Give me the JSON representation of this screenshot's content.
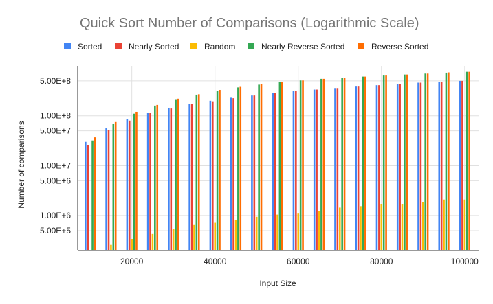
{
  "chart_data": {
    "type": "bar",
    "title": "Quick Sort Number of Comparisons (Logarithmic Scale)",
    "xlabel": "Input Size",
    "ylabel": "Number of comparisons",
    "y_scale": "log",
    "ylim": [
      200000,
      1000000000
    ],
    "xlim": [
      7000,
      103500
    ],
    "grid": "horizontal",
    "legend_position": "top",
    "x_ticks": [
      "20000",
      "40000",
      "60000",
      "80000",
      "100000"
    ],
    "x_tick_values": [
      20000,
      40000,
      60000,
      80000,
      100000
    ],
    "y_ticks": [
      "5.00E+8",
      "1.00E+8",
      "5.00E+7",
      "1.00E+7",
      "5.00E+6",
      "1.00E+6",
      "5.00E+5"
    ],
    "y_tick_values": [
      500000000,
      100000000,
      50000000,
      10000000,
      5000000,
      1000000,
      500000
    ],
    "x": [
      10000,
      15000,
      20000,
      25000,
      30000,
      35000,
      40000,
      45000,
      50000,
      55000,
      60000,
      65000,
      70000,
      75000,
      80000,
      85000,
      90000,
      95000,
      100000
    ],
    "series": [
      {
        "name": "Sorted",
        "color": "#4285f4",
        "values": [
          30000000,
          56000000,
          85000000,
          115000000,
          145000000,
          170000000,
          200000000,
          230000000,
          255000000,
          285000000,
          310000000,
          335000000,
          360000000,
          385000000,
          410000000,
          435000000,
          460000000,
          480000000,
          500000000
        ]
      },
      {
        "name": "Nearly Sorted",
        "color": "#ea4335",
        "values": [
          26000000,
          52000000,
          80000000,
          115000000,
          140000000,
          170000000,
          195000000,
          225000000,
          255000000,
          285000000,
          310000000,
          335000000,
          360000000,
          385000000,
          410000000,
          435000000,
          460000000,
          480000000,
          500000000
        ]
      },
      {
        "name": "Random",
        "color": "#fbbc04",
        "values": [
          150000,
          260000,
          340000,
          430000,
          550000,
          650000,
          720000,
          810000,
          950000,
          1050000,
          1100000,
          1250000,
          1450000,
          1550000,
          1700000,
          1700000,
          1850000,
          2100000,
          2100000
        ]
      },
      {
        "name": "Nearly Reverse Sorted",
        "color": "#34a853",
        "values": [
          32000000,
          70000000,
          110000000,
          160000000,
          215000000,
          265000000,
          320000000,
          370000000,
          420000000,
          470000000,
          510000000,
          550000000,
          580000000,
          610000000,
          640000000,
          670000000,
          700000000,
          730000000,
          760000000
        ]
      },
      {
        "name": "Reverse Sorted",
        "color": "#ff6d01",
        "values": [
          37000000,
          75000000,
          120000000,
          165000000,
          220000000,
          270000000,
          330000000,
          380000000,
          430000000,
          470000000,
          510000000,
          550000000,
          580000000,
          610000000,
          640000000,
          670000000,
          700000000,
          740000000,
          760000000
        ]
      }
    ]
  }
}
